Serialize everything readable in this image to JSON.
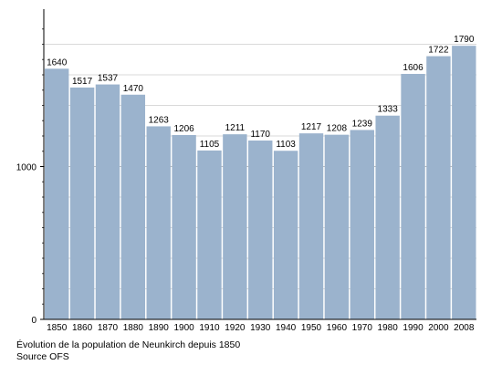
{
  "caption": "Évolution de la population de Neunkirch depuis 1850",
  "source": "Source OFS",
  "chart_data": {
    "type": "bar",
    "categories": [
      "1850",
      "1860",
      "1870",
      "1880",
      "1890",
      "1900",
      "1910",
      "1920",
      "1930",
      "1940",
      "1950",
      "1960",
      "1970",
      "1980",
      "1990",
      "2000",
      "2008"
    ],
    "values": [
      1640,
      1517,
      1537,
      1470,
      1263,
      1206,
      1105,
      1211,
      1170,
      1103,
      1217,
      1208,
      1239,
      1333,
      1606,
      1722,
      1790
    ],
    "y_ticks": [
      "0",
      "1000"
    ],
    "ylim": [
      0,
      2000
    ],
    "grid": true,
    "bar_color": "#9bb3cd",
    "grid_color": "#d9d9d9",
    "axis_color": "#000000"
  }
}
